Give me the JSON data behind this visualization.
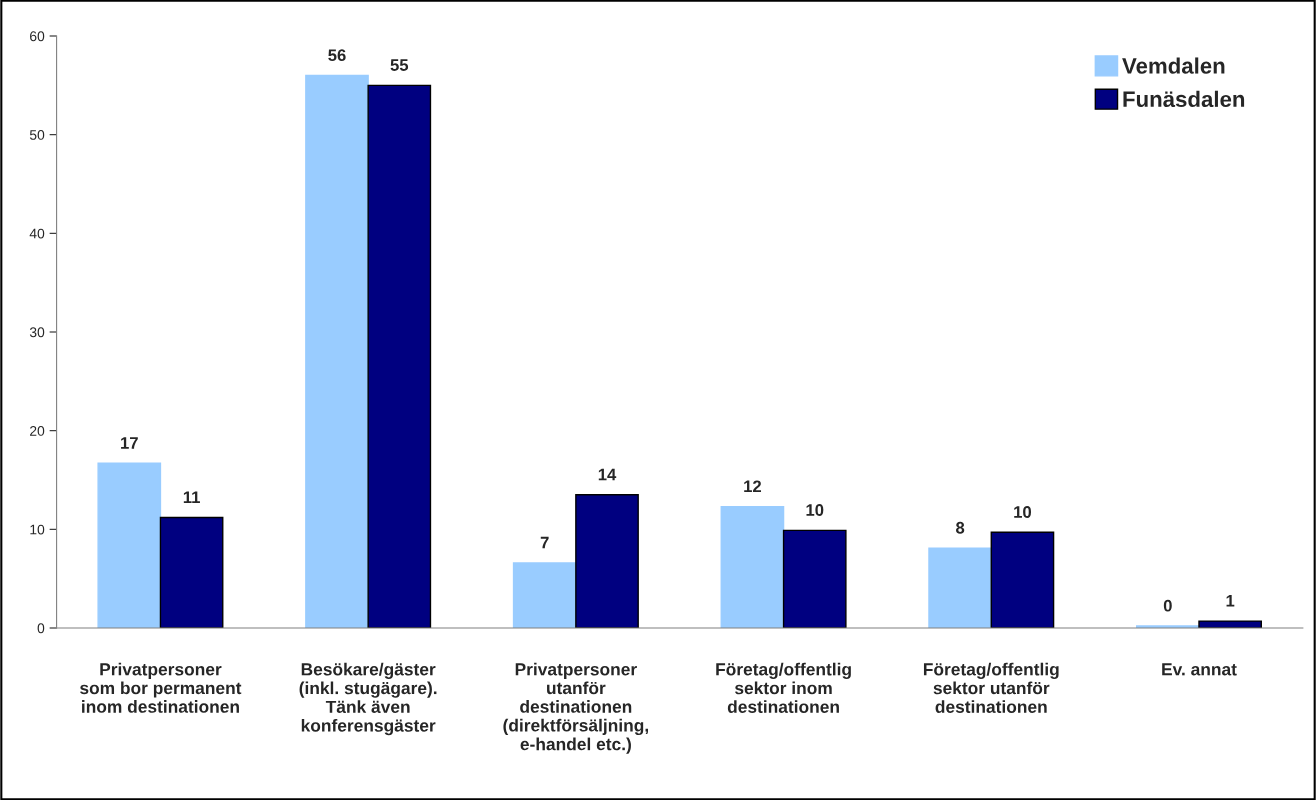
{
  "chart_data": {
    "type": "bar",
    "categories": [
      "Privatpersoner\nsom bor permanent\ninom destinationen",
      "Besökare/gäster\n(inkl. stugägare).\nTänk även\nkonferensgäster",
      "Privatpersoner\nutanför\ndestinationen\n(direktförsäljning,\ne-handel etc.)",
      "Företag/offentlig\nsektor inom\ndestinationen",
      "Företag/offentlig\nsektor utanför\ndestinationen",
      "Ev. annat"
    ],
    "series": [
      {
        "name": "Vemdalen",
        "color": "#99ccff",
        "values": [
          16.7,
          56,
          6.6,
          12.3,
          8.1,
          0.2
        ],
        "value_labels": [
          "17",
          "56",
          "7",
          "12",
          "8",
          "0"
        ]
      },
      {
        "name": "Funäsdalen",
        "color": "#000080",
        "values": [
          11.2,
          55,
          13.5,
          9.9,
          9.7,
          0.7
        ],
        "value_labels": [
          "11",
          "55",
          "14",
          "10",
          "10",
          "1"
        ]
      }
    ],
    "ylim": [
      0,
      60
    ],
    "yticks": [
      0,
      10,
      20,
      30,
      40,
      50,
      60
    ],
    "grid": false,
    "legend": "top right"
  }
}
